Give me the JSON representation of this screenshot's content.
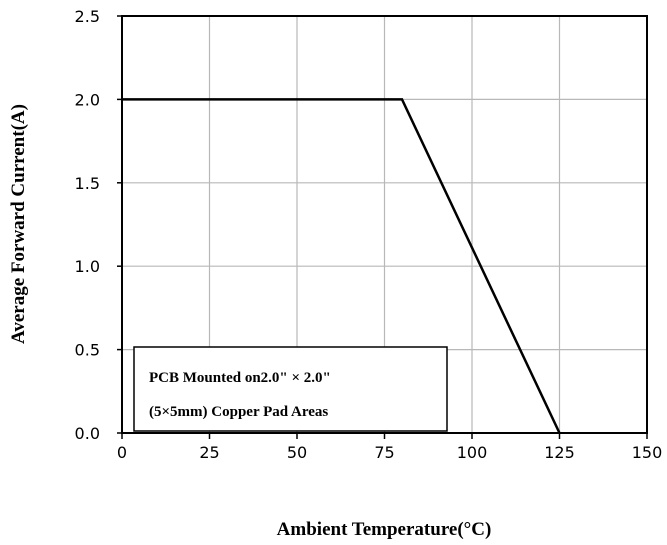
{
  "chart_data": {
    "type": "line",
    "title": "",
    "xlabel": "Ambient Temperature(°C)",
    "ylabel": "Average Forward Current(A)",
    "xlim": [
      0,
      150
    ],
    "ylim": [
      0,
      2.5
    ],
    "xticks": [
      "0",
      "25",
      "50",
      "75",
      "100",
      "125",
      "150"
    ],
    "yticks": [
      "0.0",
      "0.5",
      "1.0",
      "1.5",
      "2.0",
      "2.5"
    ],
    "grid": true,
    "series": [
      {
        "x": [
          0,
          80,
          125
        ],
        "y": [
          2.0,
          2.0,
          0.0
        ]
      }
    ],
    "annotation": {
      "line1": "PCB Mounted on2.0\" × 2.0\"",
      "line2": "(5×5mm) Copper Pad Areas"
    }
  }
}
